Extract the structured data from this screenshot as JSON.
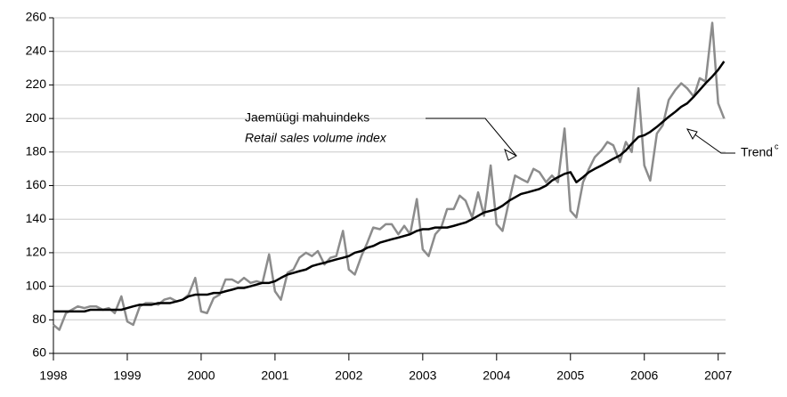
{
  "chart_data": {
    "type": "line",
    "x": [
      1998,
      1998.08,
      1998.17,
      1998.25,
      1998.33,
      1998.42,
      1998.5,
      1998.58,
      1998.67,
      1998.75,
      1998.83,
      1998.92,
      1999,
      1999.08,
      1999.17,
      1999.25,
      1999.33,
      1999.42,
      1999.5,
      1999.58,
      1999.67,
      1999.75,
      1999.83,
      1999.92,
      2000,
      2000.08,
      2000.17,
      2000.25,
      2000.33,
      2000.42,
      2000.5,
      2000.58,
      2000.67,
      2000.75,
      2000.83,
      2000.92,
      2001,
      2001.08,
      2001.17,
      2001.25,
      2001.33,
      2001.42,
      2001.5,
      2001.58,
      2001.67,
      2001.75,
      2001.83,
      2001.92,
      2002,
      2002.08,
      2002.17,
      2002.25,
      2002.33,
      2002.42,
      2002.5,
      2002.58,
      2002.67,
      2002.75,
      2002.83,
      2002.92,
      2003,
      2003.08,
      2003.17,
      2003.25,
      2003.33,
      2003.42,
      2003.5,
      2003.58,
      2003.67,
      2003.75,
      2003.83,
      2003.92,
      2004,
      2004.08,
      2004.17,
      2004.25,
      2004.33,
      2004.42,
      2004.5,
      2004.58,
      2004.67,
      2004.75,
      2004.83,
      2004.92,
      2005,
      2005.08,
      2005.17,
      2005.25,
      2005.33,
      2005.42,
      2005.5,
      2005.58,
      2005.67,
      2005.75,
      2005.83,
      2005.92,
      2006,
      2006.08,
      2006.17,
      2006.25,
      2006.33,
      2006.42,
      2006.5,
      2006.58,
      2006.67,
      2006.75,
      2006.83,
      2006.92,
      2007,
      2007.08
    ],
    "series": [
      {
        "name": "Retail sales volume index",
        "color": "#8c8c8c",
        "width": 2.5,
        "values": [
          77,
          74,
          84,
          86,
          88,
          87,
          88,
          88,
          86,
          87,
          84,
          94,
          79,
          77,
          88,
          90,
          90,
          89,
          92,
          93,
          91,
          92,
          95,
          105,
          85,
          84,
          93,
          95,
          104,
          104,
          102,
          105,
          102,
          103,
          102,
          119,
          97,
          92,
          108,
          110,
          117,
          120,
          118,
          121,
          113,
          117,
          118,
          133,
          110,
          107,
          118,
          126,
          135,
          134,
          137,
          137,
          131,
          136,
          131,
          152,
          122,
          118,
          131,
          135,
          146,
          146,
          154,
          151,
          141,
          156,
          142,
          172,
          137,
          133,
          151,
          166,
          164,
          162,
          170,
          168,
          162,
          166,
          162,
          194,
          145,
          141,
          162,
          170,
          177,
          181,
          186,
          184,
          174,
          186,
          180,
          218,
          172,
          163,
          191,
          196,
          211,
          217,
          221,
          218,
          213,
          224,
          222,
          257,
          209,
          200
        ]
      },
      {
        "name": "Trend",
        "color": "#000000",
        "width": 2.5,
        "values": [
          85,
          85,
          85,
          85,
          85,
          85,
          86,
          86,
          86,
          86,
          86,
          86,
          87,
          88,
          89,
          89,
          89,
          90,
          90,
          90,
          91,
          92,
          94,
          95,
          95,
          95,
          96,
          96,
          97,
          98,
          99,
          99,
          100,
          101,
          102,
          102,
          103,
          105,
          107,
          108,
          109,
          110,
          112,
          113,
          114,
          115,
          116,
          117,
          118,
          120,
          121,
          123,
          124,
          126,
          127,
          128,
          129,
          130,
          131,
          133,
          134,
          134,
          135,
          135,
          135,
          136,
          137,
          138,
          140,
          142,
          144,
          145,
          146,
          148,
          151,
          153,
          155,
          156,
          157,
          158,
          160,
          163,
          165,
          167,
          168,
          162,
          165,
          168,
          170,
          172,
          174,
          176,
          178,
          181,
          185,
          189,
          190,
          192,
          195,
          198,
          201,
          204,
          207,
          209,
          213,
          217,
          221,
          225,
          229,
          234
        ]
      }
    ],
    "annotations": [
      "Jaemüügi mahuindeks",
      "Retail sales volume index",
      "Trend",
      "c"
    ],
    "xlim": [
      1998,
      2007.1
    ],
    "xticks": [
      1998,
      1999,
      2000,
      2001,
      2002,
      2003,
      2004,
      2005,
      2006,
      2007
    ],
    "ylim": [
      60,
      260
    ],
    "yticks": [
      60,
      80,
      100,
      120,
      140,
      160,
      180,
      200,
      220,
      240,
      260
    ],
    "grid": true
  }
}
